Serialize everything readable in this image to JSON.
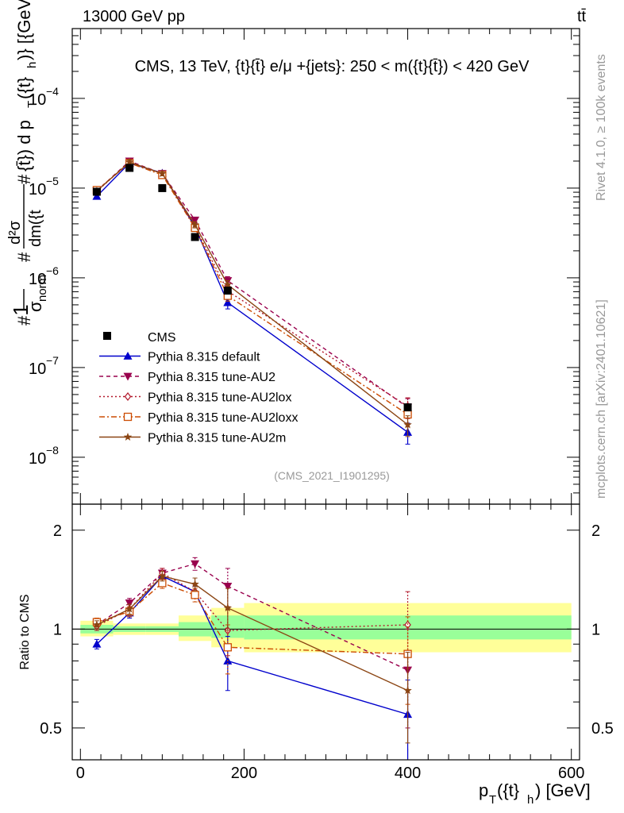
{
  "header": {
    "left": "13000 GeV pp",
    "right": "tt̄"
  },
  "side_labels": {
    "rivet": "Rivet 4.1.0, ≥ 100k events",
    "mcplots": "mcplots.cern.ch [arXiv:2401.10621]"
  },
  "chart_data": [
    {
      "type": "line",
      "panel": "main",
      "title": "CMS, 13 TeV, {t}{t̄} e/μ +{jets}: 250 < m({t}{t̄}) < 420 GeV",
      "analysis_tag": "(CMS_2021_I1901295)",
      "ylabel": "#1/σnorm # d²σ/dm({t}{t̄}) # d pT({t}h)} [{GeV}⁻²]",
      "ylabel_parts": {
        "hash1": "#",
        "one": "1",
        "sigma_norm": "σ",
        "norm_sub": "norm",
        "hash2": "#",
        "d2sigma": "d²σ",
        "dm": "dm({t",
        "hash3": "#",
        "dm_rest": "{t̄}) d p",
        "pt_sub": "T",
        "pt_rest": "({t}",
        "h_sub": "h",
        "tail": ")} [{GeV}",
        "exp": "-2",
        "close": "]"
      },
      "xlabel": "",
      "yscale": "log",
      "xlim": [
        -10,
        610
      ],
      "ylim": [
        3e-09,
        0.0006
      ],
      "y_ticks": [
        {
          "value": 1e-08,
          "mant": "10",
          "exp": "−8"
        },
        {
          "value": 1e-07,
          "mant": "10",
          "exp": "−7"
        },
        {
          "value": 1e-06,
          "mant": "10",
          "exp": "−6"
        },
        {
          "value": 1e-05,
          "mant": "10",
          "exp": "−5"
        },
        {
          "value": 0.0001,
          "mant": "10",
          "exp": "−4"
        }
      ],
      "x": [
        20,
        60,
        100,
        140,
        180,
        400
      ],
      "data": {
        "name": "CMS",
        "x": [
          20,
          60,
          100,
          140,
          180,
          400
        ],
        "y": [
          9.1e-06,
          1.68e-05,
          1e-05,
          2.85e-06,
          7.2e-07,
          3.6e-08
        ],
        "xerr": [
          20,
          20,
          20,
          20,
          20,
          200
        ]
      },
      "series": [
        {
          "name": "Pythia 8.315 default",
          "color": "#0000cc",
          "marker": "triangle-up",
          "dash": "",
          "values": [
            8.1e-06,
            1.9e-05,
            1.47e-05,
            3.7e-06,
            5.3e-07,
            1.9e-08
          ],
          "errors": [
            5e-07,
            1e-06,
            8e-07,
            3e-07,
            8e-08,
            5e-09
          ]
        },
        {
          "name": "Pythia 8.315 tune-AU2",
          "color": "#99004d",
          "marker": "triangle-down",
          "dash": "5,4",
          "values": [
            9.3e-06,
            2e-05,
            1.45e-05,
            4.4e-06,
            9.3e-07,
            3.6e-08
          ],
          "errors": [
            5e-07,
            1e-06,
            8e-07,
            3e-07,
            1e-07,
            9e-09
          ]
        },
        {
          "name": "Pythia 8.315 tune-AU2lox",
          "color": "#b2182b",
          "marker": "diamond",
          "dash": "2,3",
          "values": [
            9.2e-06,
            1.95e-05,
            1.45e-05,
            3.7e-06,
            7.1e-07,
            3.7e-08
          ],
          "errors": [
            5e-07,
            1e-06,
            8e-07,
            3e-07,
            9e-08,
            9e-09
          ]
        },
        {
          "name": "Pythia 8.315 tune-AU2loxx",
          "color": "#cc4c02",
          "marker": "square-open",
          "dash": "7,3,2,3",
          "values": [
            9.5e-06,
            1.9e-05,
            1.4e-05,
            3.6e-06,
            6.3e-07,
            3e-08
          ],
          "errors": [
            5e-07,
            1e-06,
            8e-07,
            3e-07,
            8e-08,
            8e-09
          ]
        },
        {
          "name": "Pythia 8.315 tune-AU2m",
          "color": "#8b4513",
          "marker": "star",
          "dash": "",
          "values": [
            9.3e-06,
            1.95e-05,
            1.45e-05,
            3.9e-06,
            8.4e-07,
            2.3e-08
          ],
          "errors": [
            5e-07,
            1e-06,
            8e-07,
            3e-07,
            9e-08,
            6e-09
          ]
        }
      ],
      "legend": {
        "position": "lower-left",
        "data_label": "CMS"
      }
    },
    {
      "type": "line",
      "panel": "ratio",
      "ylabel": "Ratio to CMS",
      "xlabel": "pT({t}h) [GeV]",
      "xlabel_parts": {
        "p": "p",
        "t_sub": "T",
        "mid": "({t}",
        "h_sub": "h",
        "tail": ") [GeV]"
      },
      "ylim": [
        0.4,
        2.4
      ],
      "yscale": "log",
      "y_ticks": [
        {
          "value": 0.5,
          "label": "0.5"
        },
        {
          "value": 1,
          "label": "1"
        },
        {
          "value": 2,
          "label": "2"
        }
      ],
      "x_ticks": [
        {
          "value": 0,
          "label": "0"
        },
        {
          "value": 200,
          "label": "200"
        },
        {
          "value": 400,
          "label": "400"
        },
        {
          "value": 600,
          "label": "600"
        }
      ],
      "x": [
        20,
        60,
        100,
        140,
        180,
        400
      ],
      "uncertainty_bands": {
        "bins": [
          [
            0,
            40
          ],
          [
            40,
            80
          ],
          [
            80,
            120
          ],
          [
            120,
            160
          ],
          [
            160,
            200
          ],
          [
            200,
            600
          ]
        ],
        "stat": [
          [
            0.97,
            1.03
          ],
          [
            0.98,
            1.02
          ],
          [
            0.98,
            1.02
          ],
          [
            0.95,
            1.05
          ],
          [
            0.94,
            1.1
          ],
          [
            0.93,
            1.1
          ]
        ],
        "total": [
          [
            0.95,
            1.06
          ],
          [
            0.96,
            1.04
          ],
          [
            0.96,
            1.04
          ],
          [
            0.92,
            1.1
          ],
          [
            0.88,
            1.16
          ],
          [
            0.85,
            1.2
          ]
        ],
        "stat_color": "#99ff99",
        "total_color": "#ffff99"
      },
      "series": [
        {
          "name": "Pythia 8.315 default",
          "color": "#0000cc",
          "marker": "triangle-up",
          "dash": "",
          "values": [
            0.9,
            1.12,
            1.45,
            1.3,
            0.8,
            0.55
          ],
          "errors": [
            0.03,
            0.04,
            0.04,
            0.05,
            0.15,
            0.15
          ]
        },
        {
          "name": "Pythia 8.315 tune-AU2",
          "color": "#99004d",
          "marker": "triangle-down",
          "dash": "5,4",
          "values": [
            1.03,
            1.2,
            1.48,
            1.58,
            1.35,
            0.75
          ],
          "errors": [
            0.03,
            0.04,
            0.05,
            0.07,
            0.18,
            0.25
          ]
        },
        {
          "name": "Pythia 8.315 tune-AU2lox",
          "color": "#b2182b",
          "marker": "diamond",
          "dash": "2,3",
          "values": [
            1.02,
            1.15,
            1.48,
            1.3,
            0.99,
            1.03
          ],
          "errors": [
            0.03,
            0.04,
            0.05,
            0.06,
            0.16,
            0.27
          ]
        },
        {
          "name": "Pythia 8.315 tune-AU2loxx",
          "color": "#cc4c02",
          "marker": "square-open",
          "dash": "7,3,2,3",
          "values": [
            1.05,
            1.13,
            1.38,
            1.27,
            0.88,
            0.84
          ],
          "errors": [
            0.03,
            0.04,
            0.05,
            0.06,
            0.15,
            0.25
          ]
        },
        {
          "name": "Pythia 8.315 tune-AU2m",
          "color": "#8b4513",
          "marker": "star",
          "dash": "",
          "values": [
            1.03,
            1.15,
            1.45,
            1.37,
            1.16,
            0.65
          ],
          "errors": [
            0.03,
            0.04,
            0.05,
            0.06,
            0.17,
            0.2
          ]
        }
      ]
    }
  ]
}
